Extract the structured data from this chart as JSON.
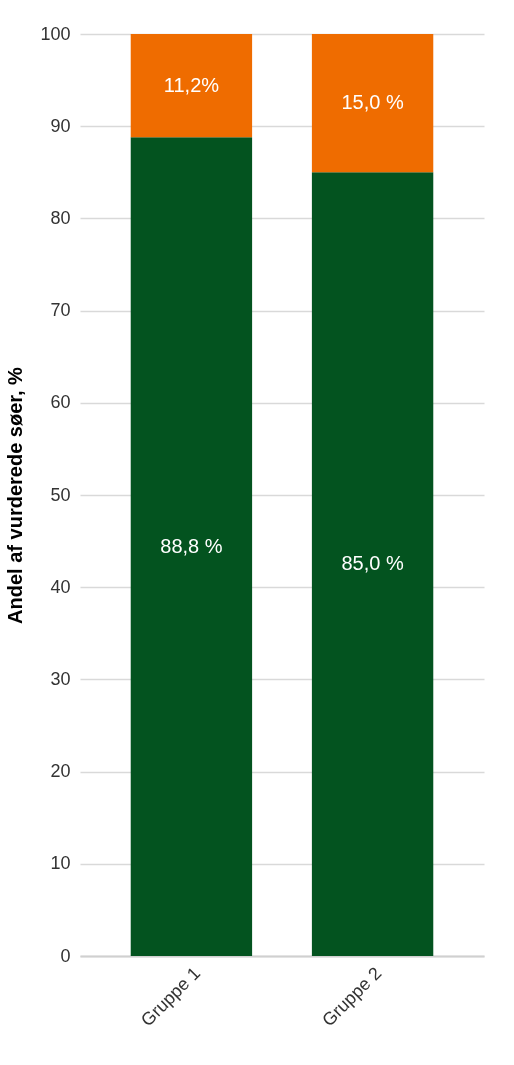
{
  "chart_data": {
    "type": "bar",
    "stacked": true,
    "ylabel": "Andel af vurderede søer, %",
    "categories": [
      "Gruppe 1",
      "Gruppe 2"
    ],
    "series": [
      {
        "color": "#03531f",
        "values": [
          88.8,
          85.0
        ],
        "value_labels": [
          "88,8 %",
          "85,0 %"
        ]
      },
      {
        "color": "#ef6c00",
        "values": [
          11.2,
          15.0
        ],
        "value_labels": [
          "11,2%",
          "15,0 %"
        ]
      }
    ],
    "ylim": [
      0,
      100
    ],
    "yticks": [
      0,
      10,
      20,
      30,
      40,
      50,
      60,
      70,
      80,
      90,
      100
    ],
    "grid": "y",
    "legend": false
  }
}
